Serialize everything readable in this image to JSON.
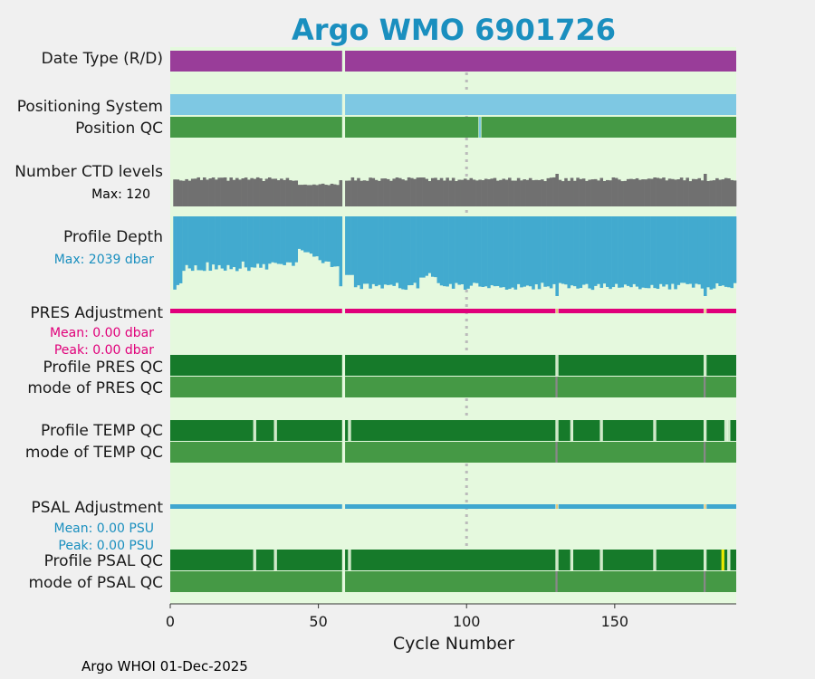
{
  "chart_data": {
    "type": "bar",
    "title": "Argo WMO 6901726",
    "xlabel": "Cycle Number",
    "xlim": [
      0,
      191
    ],
    "xticks": [
      0,
      50,
      100,
      150
    ],
    "grid": false,
    "colors": {
      "title": "#1a8fbf",
      "plot_bg": "#e5f9de",
      "figure_bg": "#f0f0f0",
      "date_type": "#993d99",
      "positioning": "#7ec8e3",
      "good_qc": "#167a2a",
      "mode_qc": "#459945",
      "qc_gap": "#b8e0b0",
      "qc_mode_mark": "#888888",
      "ctd": "#707070",
      "depth": "#42aacf",
      "pres_adj": "#e0007a",
      "psal_adj": "#3fa7cf",
      "adj_gap": "#e8c77a",
      "questionable_qc": "#e8e800",
      "max_line": "#bbbbbb"
    },
    "missing_cycles": [
      58
    ],
    "rows": {
      "date_type": {
        "label": "Date Type (R/D)"
      },
      "positioning": {
        "label": "Positioning System"
      },
      "position_qc": {
        "label": "Position QC",
        "gap_cycles": [
          104
        ]
      },
      "ctd_levels": {
        "label": "Number CTD levels",
        "max_label": "Max: 120",
        "max": 120
      },
      "profile_depth": {
        "label": "Profile Depth",
        "max_label": "Max: 2039 dbar",
        "max": 2039
      },
      "pres_adjustment": {
        "label": "PRES Adjustment",
        "mean_label": "Mean: 0.00 dbar",
        "peak_label": "Peak: 0.00 dbar",
        "gap_cycles": [
          58,
          130,
          180
        ]
      },
      "profile_pres_qc": {
        "label": "Profile PRES QC",
        "gap_cycles": [
          130,
          180
        ]
      },
      "mode_pres_qc": {
        "label": "mode of PRES QC",
        "mark_cycles": [
          130,
          180
        ]
      },
      "profile_temp_qc": {
        "label": "Profile TEMP QC",
        "gap_cycles": [
          28,
          35,
          60,
          130,
          135,
          145,
          163,
          180,
          187,
          188
        ]
      },
      "mode_temp_qc": {
        "label": "mode of TEMP QC",
        "mark_cycles": [
          130,
          180
        ]
      },
      "psal_adjustment": {
        "label": "PSAL Adjustment",
        "mean_label": "Mean: 0.00 PSU",
        "peak_label": "Peak: 0.00 PSU",
        "gap_cycles": [
          58,
          130,
          180
        ]
      },
      "profile_psal_qc": {
        "label": "Profile PSAL QC",
        "gap_cycles": [
          28,
          35,
          60,
          130,
          135,
          145,
          163,
          180,
          188
        ],
        "questionable_cycles": [
          186
        ]
      },
      "mode_psal_qc": {
        "label": "mode of PSAL QC",
        "mark_cycles": [
          130,
          180
        ]
      }
    }
  },
  "footer": "Argo WHOI 01-Dec-2025"
}
